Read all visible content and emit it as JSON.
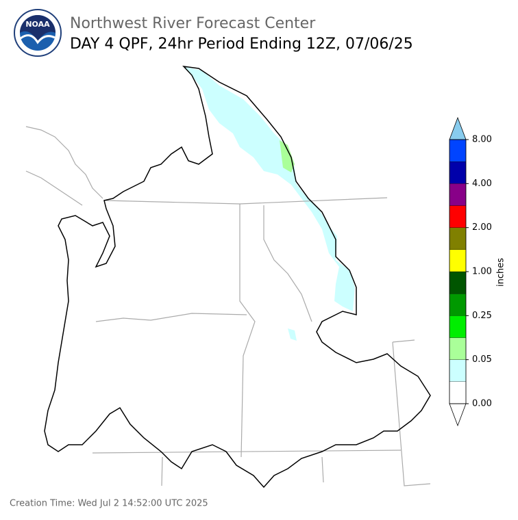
{
  "header": {
    "title": "Northwest River Forecast Center",
    "subtitle": "DAY 4 QPF, 24hr Period Ending 12Z, 07/06/25",
    "logo_text": "NOAA"
  },
  "colorbar": {
    "colors": [
      "#ffffff",
      "#ccffff",
      "#aaff99",
      "#00ee00",
      "#009900",
      "#005500",
      "#ffff00",
      "#808000",
      "#ff0000",
      "#880088",
      "#0000aa",
      "#0044ff"
    ],
    "low_color": "#ffffff",
    "high_color": "#88ccee",
    "labels": [
      "0.00",
      "0.05",
      "0.25",
      "1.00",
      "2.00",
      "4.00",
      "8.00"
    ],
    "unit": "inches"
  },
  "footer": {
    "creation_time": "Creation Time: Wed Jul 2 14:52:00 UTC 2025"
  }
}
